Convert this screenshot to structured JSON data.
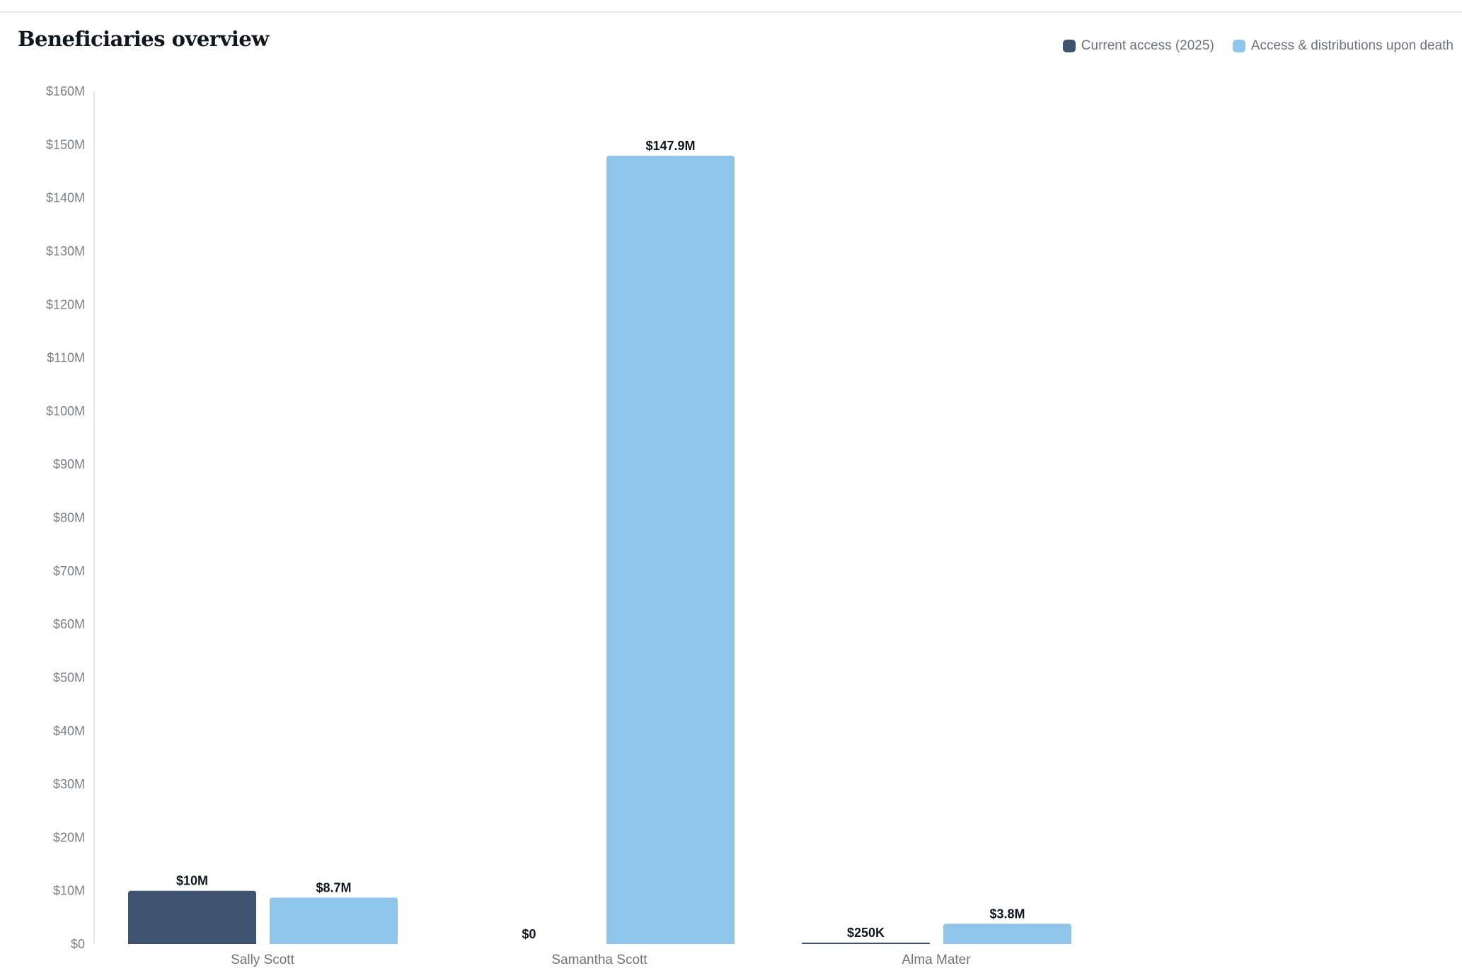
{
  "chart_data": {
    "type": "bar",
    "title": "Beneficiaries overview",
    "categories": [
      "Sally Scott",
      "Samantha Scott",
      "Alma Mater"
    ],
    "series": [
      {
        "name": "Current access (2025)",
        "color": "#3e5370",
        "values": [
          10000000,
          0,
          250000
        ],
        "labels": [
          "$10M",
          "$0",
          "$250K"
        ]
      },
      {
        "name": "Access & distributions upon death",
        "color": "#8fc5ea",
        "values": [
          8700000,
          147900000,
          3800000
        ],
        "labels": [
          "$8.7M",
          "$147.9M",
          "$3.8M"
        ]
      }
    ],
    "ylim": [
      0,
      160000000
    ],
    "y_ticks": [
      0,
      10000000,
      20000000,
      30000000,
      40000000,
      50000000,
      60000000,
      70000000,
      80000000,
      90000000,
      100000000,
      110000000,
      120000000,
      130000000,
      140000000,
      150000000,
      160000000
    ],
    "y_tick_labels": [
      "$0",
      "$10M",
      "$20M",
      "$30M",
      "$40M",
      "$50M",
      "$60M",
      "$70M",
      "$80M",
      "$90M",
      "$100M",
      "$110M",
      "$120M",
      "$130M",
      "$140M",
      "$150M",
      "$160M"
    ],
    "xlabel": "",
    "ylabel": "",
    "grid": false,
    "legend_position": "top-right"
  }
}
